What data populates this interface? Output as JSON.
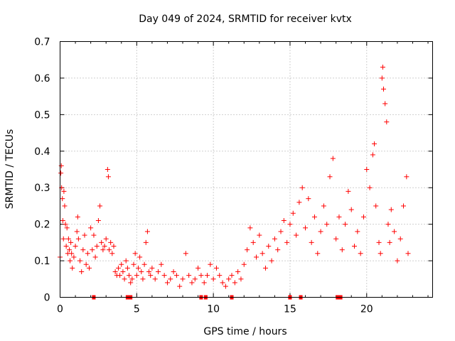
{
  "chart_data": {
    "type": "scatter",
    "title": "Day 049 of 2024, SRMTID for receiver kvtx",
    "xlabel": "GPS time / hours",
    "ylabel": "SRMTID / TECUs",
    "xlim": [
      0,
      24.3
    ],
    "ylim": [
      0,
      0.7
    ],
    "xticks": [
      0,
      5,
      10,
      15,
      20
    ],
    "xtick_labels": [
      "0",
      "5",
      "10",
      "15",
      "20"
    ],
    "yticks": [
      0,
      0.1,
      0.2,
      0.3,
      0.4,
      0.5,
      0.6,
      0.7
    ],
    "ytick_labels": [
      "0",
      "0.1",
      "0.2",
      "0.3",
      "0.4",
      "0.5",
      "0.6",
      "0.7"
    ],
    "grid": true,
    "marker": "plus",
    "color": "#ff0000",
    "series": [
      {
        "name": "SRMTID",
        "points": [
          [
            0.0,
            0.11
          ],
          [
            0.05,
            0.34
          ],
          [
            0.08,
            0.36
          ],
          [
            0.1,
            0.3
          ],
          [
            0.15,
            0.27
          ],
          [
            0.18,
            0.21
          ],
          [
            0.22,
            0.16
          ],
          [
            0.25,
            0.29
          ],
          [
            0.3,
            0.25
          ],
          [
            0.35,
            0.2
          ],
          [
            0.4,
            0.14
          ],
          [
            0.45,
            0.19
          ],
          [
            0.5,
            0.12
          ],
          [
            0.55,
            0.16
          ],
          [
            0.6,
            0.13
          ],
          [
            0.65,
            0.1
          ],
          [
            0.7,
            0.15
          ],
          [
            0.75,
            0.12
          ],
          [
            0.8,
            0.08
          ],
          [
            0.9,
            0.11
          ],
          [
            1.0,
            0.14
          ],
          [
            1.1,
            0.18
          ],
          [
            1.15,
            0.22
          ],
          [
            1.2,
            0.16
          ],
          [
            1.3,
            0.1
          ],
          [
            1.4,
            0.07
          ],
          [
            1.5,
            0.13
          ],
          [
            1.6,
            0.17
          ],
          [
            1.7,
            0.09
          ],
          [
            1.8,
            0.12
          ],
          [
            1.9,
            0.08
          ],
          [
            2.0,
            0.19
          ],
          [
            2.1,
            0.13
          ],
          [
            2.2,
            0.17
          ],
          [
            2.3,
            0.11
          ],
          [
            2.4,
            0.14
          ],
          [
            2.5,
            0.21
          ],
          [
            2.6,
            0.25
          ],
          [
            2.7,
            0.15
          ],
          [
            2.8,
            0.13
          ],
          [
            2.9,
            0.14
          ],
          [
            3.0,
            0.16
          ],
          [
            3.1,
            0.35
          ],
          [
            3.15,
            0.33
          ],
          [
            3.2,
            0.13
          ],
          [
            3.3,
            0.15
          ],
          [
            3.4,
            0.12
          ],
          [
            3.5,
            0.14
          ],
          [
            3.6,
            0.07
          ],
          [
            3.7,
            0.06
          ],
          [
            3.8,
            0.08
          ],
          [
            3.9,
            0.06
          ],
          [
            4.0,
            0.09
          ],
          [
            4.1,
            0.07
          ],
          [
            4.2,
            0.05
          ],
          [
            4.3,
            0.1
          ],
          [
            4.4,
            0.08
          ],
          [
            4.5,
            0.06
          ],
          [
            4.6,
            0.04
          ],
          [
            4.7,
            0.05
          ],
          [
            4.8,
            0.09
          ],
          [
            4.9,
            0.12
          ],
          [
            5.0,
            0.06
          ],
          [
            5.1,
            0.08
          ],
          [
            5.2,
            0.11
          ],
          [
            5.3,
            0.07
          ],
          [
            5.4,
            0.05
          ],
          [
            5.5,
            0.09
          ],
          [
            5.6,
            0.15
          ],
          [
            5.7,
            0.18
          ],
          [
            5.8,
            0.07
          ],
          [
            5.9,
            0.06
          ],
          [
            6.0,
            0.08
          ],
          [
            6.2,
            0.05
          ],
          [
            6.4,
            0.07
          ],
          [
            6.6,
            0.09
          ],
          [
            6.8,
            0.06
          ],
          [
            7.0,
            0.04
          ],
          [
            7.2,
            0.05
          ],
          [
            7.4,
            0.07
          ],
          [
            7.6,
            0.06
          ],
          [
            7.8,
            0.03
          ],
          [
            8.0,
            0.05
          ],
          [
            8.2,
            0.12
          ],
          [
            8.4,
            0.06
          ],
          [
            8.6,
            0.04
          ],
          [
            8.8,
            0.05
          ],
          [
            9.0,
            0.08
          ],
          [
            9.2,
            0.06
          ],
          [
            9.4,
            0.04
          ],
          [
            9.6,
            0.06
          ],
          [
            9.8,
            0.09
          ],
          [
            10.0,
            0.05
          ],
          [
            10.2,
            0.08
          ],
          [
            10.4,
            0.06
          ],
          [
            10.6,
            0.04
          ],
          [
            10.8,
            0.03
          ],
          [
            11.0,
            0.05
          ],
          [
            11.2,
            0.06
          ],
          [
            11.4,
            0.04
          ],
          [
            11.6,
            0.07
          ],
          [
            11.8,
            0.05
          ],
          [
            12.0,
            0.09
          ],
          [
            12.2,
            0.13
          ],
          [
            12.4,
            0.19
          ],
          [
            12.6,
            0.15
          ],
          [
            12.8,
            0.11
          ],
          [
            13.0,
            0.17
          ],
          [
            13.2,
            0.12
          ],
          [
            13.4,
            0.08
          ],
          [
            13.6,
            0.14
          ],
          [
            13.8,
            0.1
          ],
          [
            14.0,
            0.16
          ],
          [
            14.2,
            0.13
          ],
          [
            14.4,
            0.18
          ],
          [
            14.6,
            0.21
          ],
          [
            14.8,
            0.15
          ],
          [
            15.0,
            0.2
          ],
          [
            15.2,
            0.23
          ],
          [
            15.4,
            0.17
          ],
          [
            15.6,
            0.26
          ],
          [
            15.8,
            0.3
          ],
          [
            16.0,
            0.19
          ],
          [
            16.2,
            0.27
          ],
          [
            16.4,
            0.15
          ],
          [
            16.6,
            0.22
          ],
          [
            16.8,
            0.12
          ],
          [
            17.0,
            0.18
          ],
          [
            17.2,
            0.25
          ],
          [
            17.4,
            0.2
          ],
          [
            17.6,
            0.33
          ],
          [
            17.8,
            0.38
          ],
          [
            18.0,
            0.16
          ],
          [
            18.2,
            0.22
          ],
          [
            18.4,
            0.13
          ],
          [
            18.6,
            0.2
          ],
          [
            18.8,
            0.29
          ],
          [
            19.0,
            0.24
          ],
          [
            19.2,
            0.14
          ],
          [
            19.4,
            0.18
          ],
          [
            19.6,
            0.12
          ],
          [
            19.8,
            0.22
          ],
          [
            20.0,
            0.35
          ],
          [
            20.2,
            0.3
          ],
          [
            20.4,
            0.39
          ],
          [
            20.5,
            0.42
          ],
          [
            20.6,
            0.25
          ],
          [
            20.8,
            0.15
          ],
          [
            20.9,
            0.12
          ],
          [
            21.0,
            0.6
          ],
          [
            21.05,
            0.63
          ],
          [
            21.1,
            0.57
          ],
          [
            21.2,
            0.53
          ],
          [
            21.3,
            0.48
          ],
          [
            21.4,
            0.2
          ],
          [
            21.5,
            0.15
          ],
          [
            21.6,
            0.24
          ],
          [
            21.8,
            0.18
          ],
          [
            22.0,
            0.1
          ],
          [
            22.2,
            0.16
          ],
          [
            22.4,
            0.25
          ],
          [
            22.6,
            0.33
          ],
          [
            22.7,
            0.12
          ]
        ]
      }
    ],
    "gaps_on_x_axis": [
      2.2,
      4.4,
      4.6,
      9.2,
      9.5,
      11.2,
      15.0,
      15.7,
      18.1,
      18.3
    ]
  }
}
